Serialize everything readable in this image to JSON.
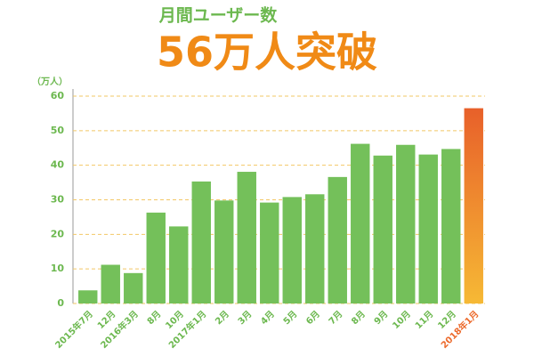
{
  "chart_data": {
    "type": "bar",
    "title": "月間ユーザー数",
    "subtitle": "56万人突破",
    "y_label": "（万人）",
    "categories": [
      "2015年7月",
      "12月",
      "2016年3月",
      "8月",
      "10月",
      "2017年1月",
      "2月",
      "3月",
      "4月",
      "5月",
      "6月",
      "7月",
      "8月",
      "9月",
      "10月",
      "11月",
      "12月",
      "2018年1月"
    ],
    "values": [
      3.8,
      11.2,
      8.8,
      26.3,
      22.3,
      35.3,
      29.8,
      38.1,
      29.2,
      30.8,
      31.6,
      36.6,
      46.2,
      42.8,
      45.9,
      43.1,
      44.7,
      56.5
    ],
    "color": "#74c05a",
    "colors": [
      "#74c05a",
      "#74c05a",
      "#74c05a",
      "#74c05a",
      "#74c05a",
      "#74c05a",
      "#74c05a",
      "#74c05a",
      "#74c05a",
      "#74c05a",
      "#74c05a",
      "#74c05a",
      "#74c05a",
      "#74c05a",
      "#74c05a",
      "#74c05a",
      "#74c05a",
      "#ec6a2c"
    ],
    "ylim": [
      0,
      60
    ],
    "yticks": [
      0,
      10,
      20,
      30,
      40,
      50,
      60
    ],
    "grid": true
  }
}
